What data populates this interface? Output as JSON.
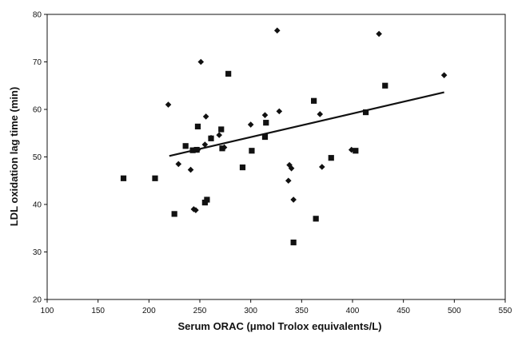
{
  "chart_data": {
    "type": "scatter",
    "title": "",
    "xlabel": "Serum ORAC (μmol Trolox equivalents/L)",
    "ylabel": "LDL oxidation lag time (min)",
    "xlim": [
      100,
      550
    ],
    "ylim": [
      20,
      80
    ],
    "xticks": [
      "100",
      "150",
      "200",
      "250",
      "300",
      "350",
      "400",
      "450",
      "500",
      "550"
    ],
    "yticks": [
      "20",
      "30",
      "40",
      "50",
      "60",
      "70",
      "80"
    ],
    "grid": false,
    "legend": "none",
    "series": [
      {
        "marker": "diamond",
        "points": [
          [
            219,
            61
          ],
          [
            229,
            48.5
          ],
          [
            241,
            47.3
          ],
          [
            244,
            39
          ],
          [
            246,
            38.8
          ],
          [
            251,
            70
          ],
          [
            256,
            58.5
          ],
          [
            257,
            41
          ],
          [
            261,
            54
          ],
          [
            269,
            54.6
          ],
          [
            274,
            52
          ],
          [
            300,
            56.8
          ],
          [
            314,
            58.8
          ],
          [
            326,
            76.6
          ],
          [
            328,
            59.6
          ],
          [
            337,
            45
          ],
          [
            338,
            48.3
          ],
          [
            340,
            47.6
          ],
          [
            342,
            41
          ],
          [
            368,
            59
          ],
          [
            370,
            47.9
          ],
          [
            399,
            51.5
          ],
          [
            426,
            75.9
          ],
          [
            490,
            67.2
          ],
          [
            255,
            52.6
          ],
          [
            248,
            51.5
          ]
        ]
      },
      {
        "marker": "square",
        "points": [
          [
            175,
            45.5
          ],
          [
            206,
            45.5
          ],
          [
            225,
            38
          ],
          [
            236,
            52.3
          ],
          [
            243,
            51.4
          ],
          [
            247,
            51.5
          ],
          [
            248,
            56.4
          ],
          [
            255,
            40.4
          ],
          [
            257,
            41
          ],
          [
            261,
            53.9
          ],
          [
            271,
            55.8
          ],
          [
            272,
            51.8
          ],
          [
            278,
            67.5
          ],
          [
            292,
            47.8
          ],
          [
            301,
            51.3
          ],
          [
            314,
            54.2
          ],
          [
            315,
            57.2
          ],
          [
            342,
            32
          ],
          [
            362,
            61.8
          ],
          [
            364,
            37
          ],
          [
            379,
            49.8
          ],
          [
            403,
            51.3
          ],
          [
            413,
            59.4
          ],
          [
            432,
            65
          ]
        ]
      }
    ],
    "trendline": {
      "x": [
        220,
        490
      ],
      "y": [
        50.2,
        63.6
      ]
    },
    "colors": {
      "markers": "#111111",
      "axes": "#111111",
      "trendline": "#111111"
    }
  }
}
